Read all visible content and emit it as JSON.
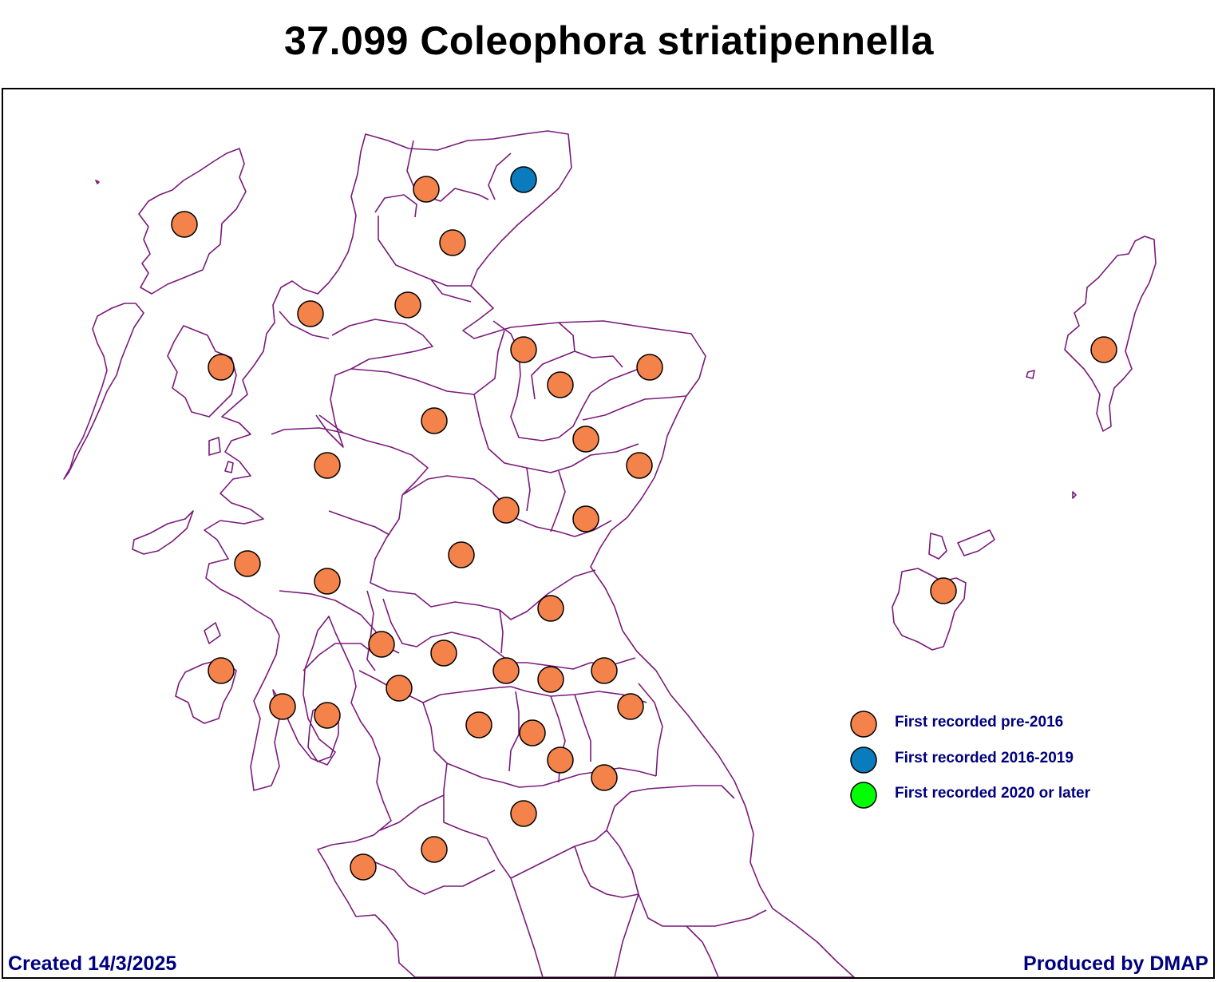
{
  "title": "37.099 Coleophora striatipennella",
  "legend": [
    {
      "label": "First recorded pre-2016",
      "color": "#f4824b"
    },
    {
      "label": "First recorded 2016-2019",
      "color": "#0a7cbd"
    },
    {
      "label": "First recorded 2020 or later",
      "color": "#00ff00"
    }
  ],
  "footer": {
    "created": "Created 14/3/2025",
    "producer": "Produced by DMAP"
  },
  "colors": {
    "boundary": "#7a1a7a",
    "marker_outline": "#000000"
  }
}
